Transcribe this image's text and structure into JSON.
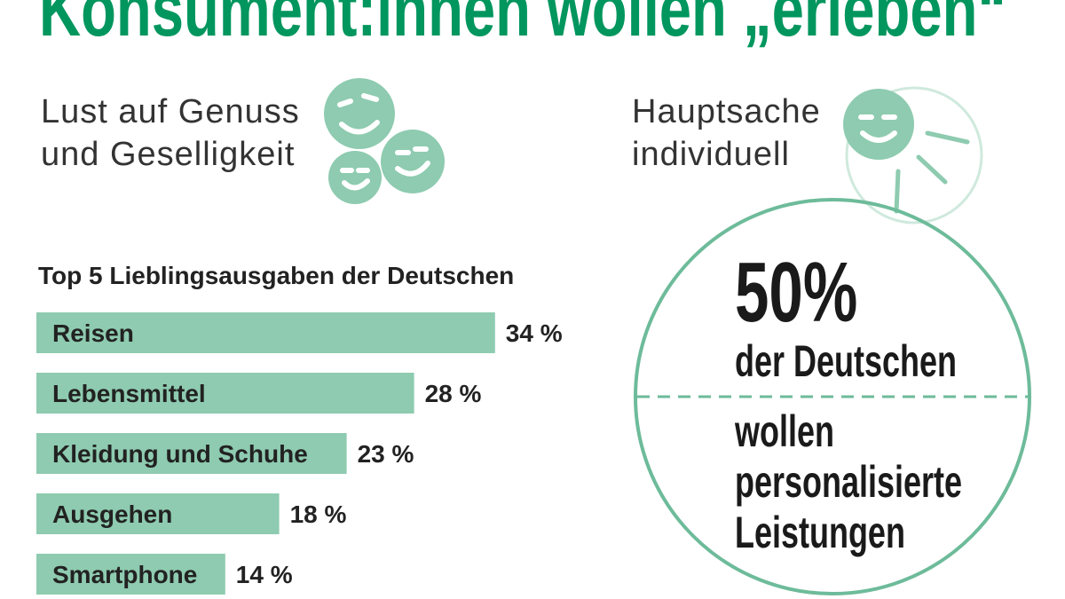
{
  "title": "Konsument:innen wollen „erleben“",
  "left_heading": [
    "Lust auf Genuss",
    "und Geselligkeit"
  ],
  "right_heading": [
    "Hauptsache",
    "individuell"
  ],
  "chart_data": {
    "type": "bar",
    "title": "Top 5 Lieblingsausgaben der Deutschen",
    "categories": [
      "Reisen",
      "Lebensmittel",
      "Kleidung und Schuhe",
      "Ausgehen",
      "Smartphone"
    ],
    "values": [
      34,
      28,
      23,
      18,
      14
    ],
    "value_labels": [
      "34 %",
      "28 %",
      "23 %",
      "18 %",
      "14 %"
    ],
    "color": "#8ecbb0"
  },
  "highlight": {
    "number": "50%",
    "line1": "der Deutschen",
    "line2": [
      "wollen",
      "personalisierte",
      "Leistungen"
    ]
  }
}
